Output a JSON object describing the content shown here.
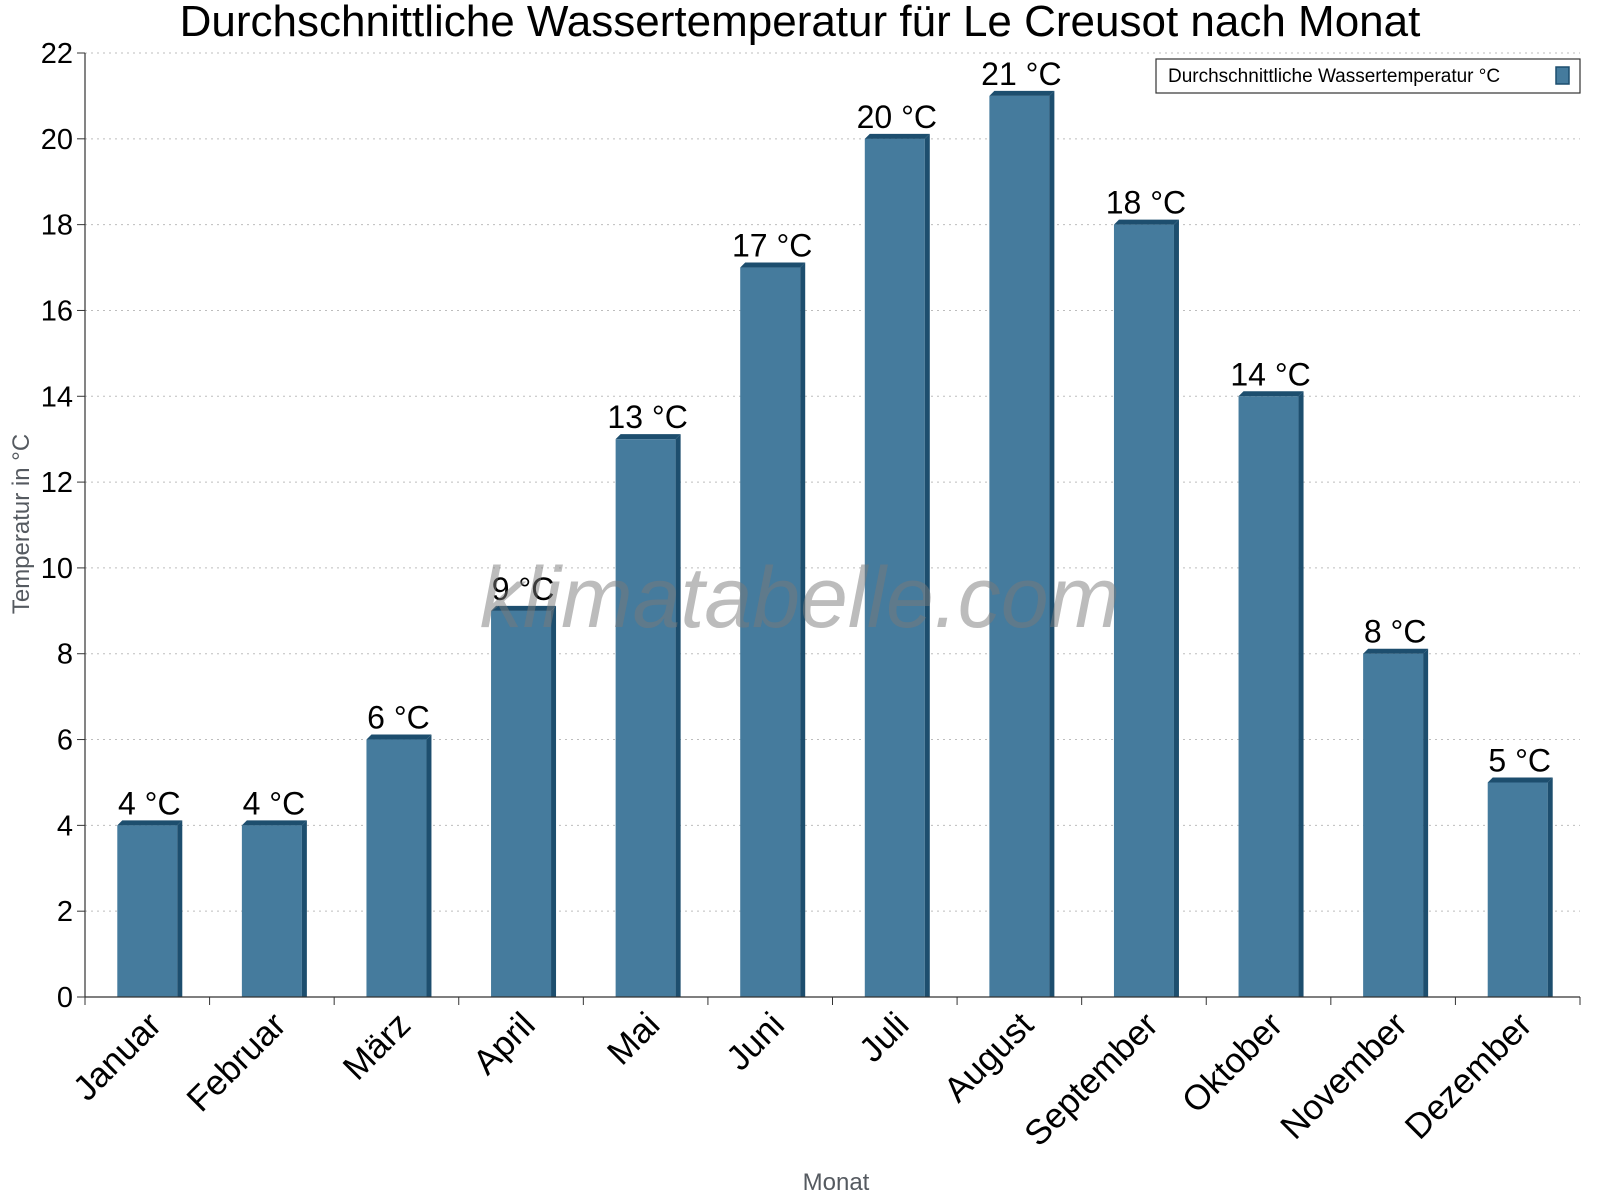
{
  "watermark": "klimatabelle.com",
  "colors": {
    "bar_front": "#457b9d",
    "bar_side": "#1d4e6e",
    "bar_top": "#1d4e6e",
    "grid": "#bdbdbd",
    "axis": "#333333"
  },
  "chart_data": {
    "type": "bar",
    "title": "Durchschnittliche Wassertemperatur für Le Creusot nach Monat",
    "xlabel": "Monat",
    "ylabel": "Temperatur in °C",
    "ylim": [
      0,
      22
    ],
    "ytick_step": 2,
    "grid": true,
    "legend_position": "top-right",
    "categories": [
      "Januar",
      "Februar",
      "März",
      "April",
      "Mai",
      "Juni",
      "Juli",
      "August",
      "September",
      "Oktober",
      "November",
      "Dezember"
    ],
    "series": [
      {
        "name": "Durchschnittliche Wassertemperatur °C",
        "values": [
          4,
          4,
          6,
          9,
          13,
          17,
          20,
          21,
          18,
          14,
          8,
          5
        ],
        "labels": [
          "4 °C",
          "4 °C",
          "6 °C",
          "9 °C",
          "13 °C",
          "17 °C",
          "20 °C",
          "21 °C",
          "18 °C",
          "14 °C",
          "8 °C",
          "5 °C"
        ]
      }
    ]
  }
}
